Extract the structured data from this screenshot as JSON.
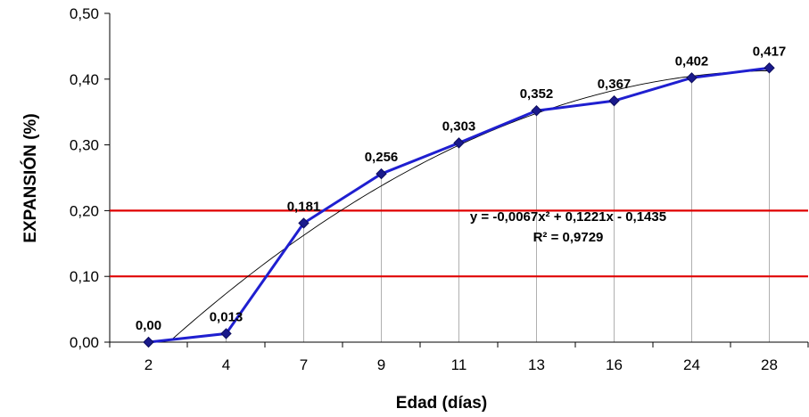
{
  "chart_data": {
    "type": "line",
    "xlabel": "Edad (días)",
    "ylabel": "EXPANSIÓN (%)",
    "categories": [
      "2",
      "4",
      "7",
      "9",
      "11",
      "13",
      "16",
      "24",
      "28"
    ],
    "series": [
      {
        "values": [
          0.0,
          0.013,
          0.181,
          0.256,
          0.303,
          0.352,
          0.367,
          0.402,
          0.417
        ],
        "labels": [
          "0,00",
          "0,013",
          "0,181",
          "0,256",
          "0,303",
          "0,352",
          "0,367",
          "0,402",
          "0,417"
        ],
        "color": "#1f1fd0",
        "marker": "diamond"
      }
    ],
    "ylim": [
      0,
      0.5
    ],
    "yticks": [
      0,
      0.1,
      0.2,
      0.3,
      0.4,
      0.5
    ],
    "ytick_labels": [
      "0,00",
      "0,10",
      "0,20",
      "0,30",
      "0,40",
      "0,50"
    ],
    "trendline": {
      "type": "polynomial",
      "order": 2,
      "coefficients": [
        -0.0067,
        0.1221,
        -0.1435
      ],
      "equation": "y = -0,0067x² + 0,1221x - 0,1435",
      "r_squared": "R² = 0,9729",
      "color": "#000000"
    },
    "reference_lines": [
      {
        "y": 0.1,
        "color": "#e00000"
      },
      {
        "y": 0.2,
        "color": "#e00000"
      }
    ],
    "drop_lines": true,
    "grid": false,
    "legend": "none"
  }
}
